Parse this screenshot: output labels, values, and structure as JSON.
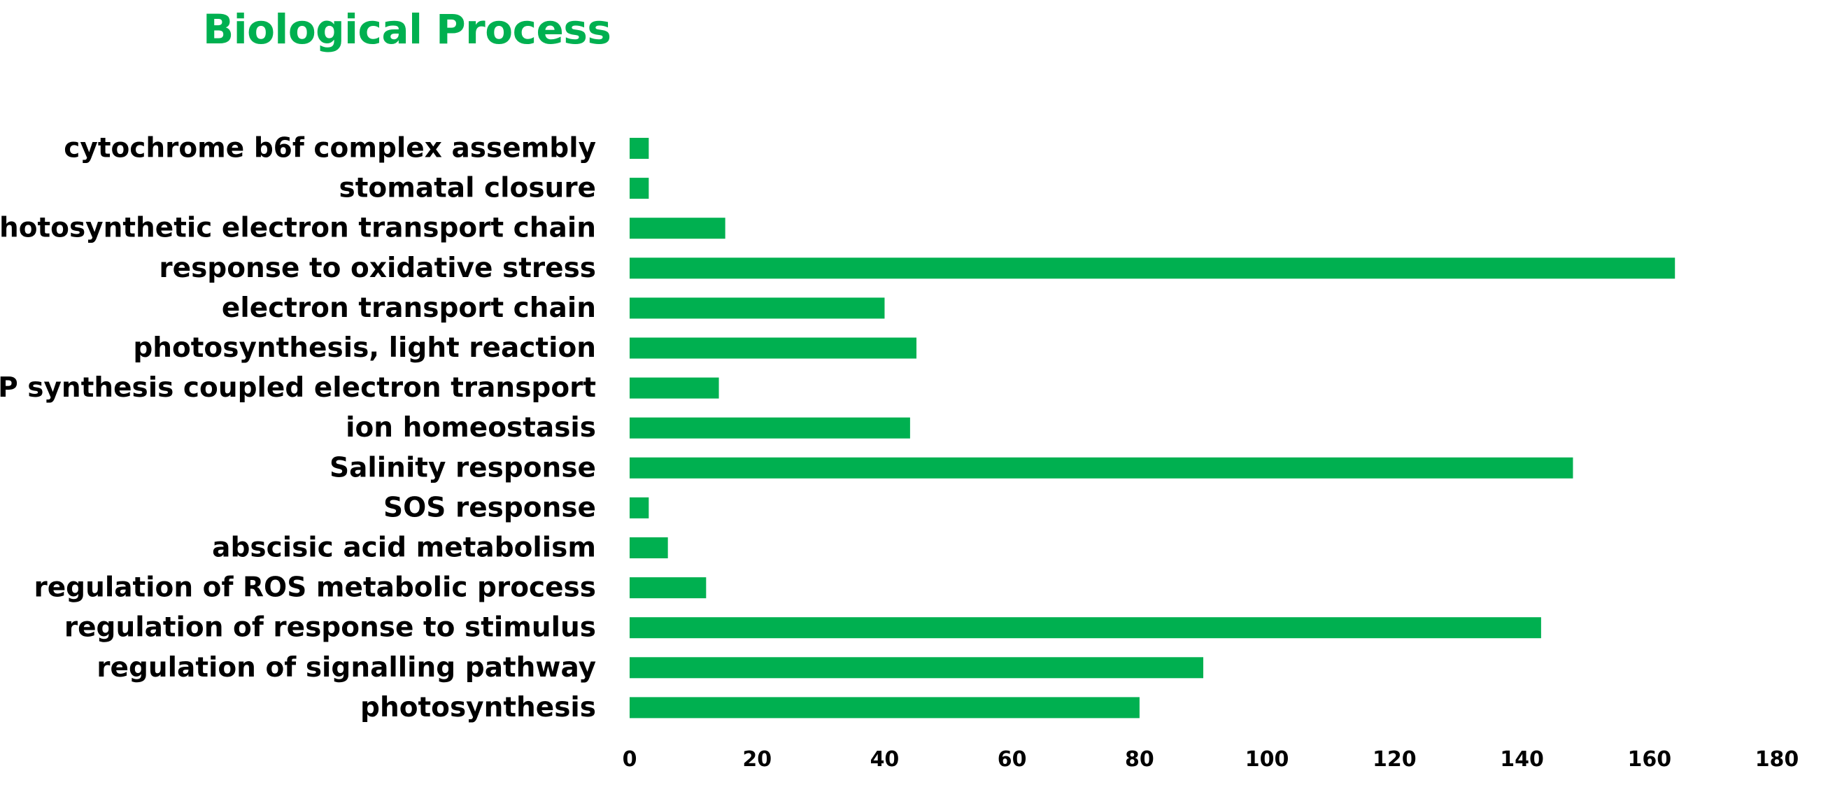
{
  "chart_data": {
    "type": "bar",
    "orientation": "horizontal",
    "title": "Biological Process",
    "xlabel": "",
    "ylabel": "",
    "categories": [
      "cytochrome b6f complex assembly",
      "stomatal closure",
      "photosynthetic electron transport chain",
      "response to oxidative stress",
      "electron transport chain",
      "photosynthesis, light reaction",
      "ATP synthesis coupled electron transport",
      "ion homeostasis",
      "Salinity response",
      "SOS response",
      "abscisic acid metabolism",
      "regulation of ROS metabolic process",
      "regulation of response to stimulus",
      "regulation of signalling pathway",
      "photosynthesis"
    ],
    "values": [
      3,
      3,
      15,
      164,
      40,
      45,
      14,
      44,
      148,
      3,
      6,
      12,
      143,
      90,
      80
    ],
    "xlim": [
      0,
      180
    ],
    "xticks": [
      "0",
      "20",
      "40",
      "60",
      "80",
      "100",
      "120",
      "140",
      "160",
      "180"
    ],
    "grid": false,
    "legend": "none",
    "bar_color": "#00b050",
    "title_color": "#00b050"
  }
}
